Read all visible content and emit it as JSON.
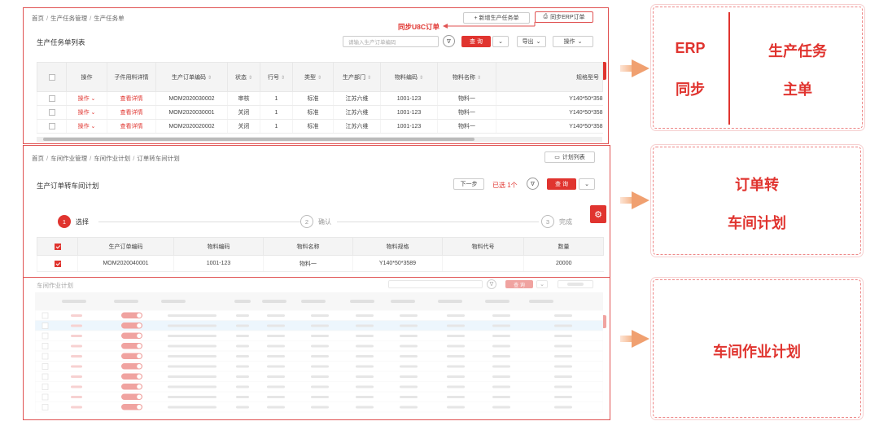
{
  "panel1": {
    "breadcrumb": [
      "首页",
      "生产任务管理",
      "生产任务单"
    ],
    "title": "生产任务单列表",
    "new_button": "+ 新增生产任务单",
    "sync_button": "同步ERP订单",
    "annotation": "同步U8C订单",
    "search_placeholder": "请输入生产订单编码",
    "query_button": "查 询",
    "export_button": "导出",
    "action_button": "操作",
    "columns": [
      "操作",
      "子件用料详情",
      "生产订单编码",
      "状态",
      "行号",
      "类型",
      "生产部门",
      "物料编码",
      "物料名称",
      "规格型号"
    ],
    "rows": [
      {
        "op": "操作",
        "detail": "查看详情",
        "code": "MOM2020030002",
        "status": "审核",
        "line": "1",
        "type": "标准",
        "dept": "江苏六维",
        "mat": "1001-123",
        "name": "物料一",
        "spec": "Y140*50*358"
      },
      {
        "op": "操作",
        "detail": "查看详情",
        "code": "MOM2020030001",
        "status": "关闭",
        "line": "1",
        "type": "标准",
        "dept": "江苏六维",
        "mat": "1001-123",
        "name": "物料一",
        "spec": "Y140*50*358"
      },
      {
        "op": "操作",
        "detail": "查看详情",
        "code": "MOM2020020002",
        "status": "关闭",
        "line": "1",
        "type": "标准",
        "dept": "江苏六维",
        "mat": "1001-123",
        "name": "物料一",
        "spec": "Y140*50*358"
      }
    ]
  },
  "panel2": {
    "breadcrumb": [
      "首页",
      "车间作业管理",
      "车间作业计划",
      "订单转车间计划"
    ],
    "plan_list_button": "计划列表",
    "title": "生产订单转车间计划",
    "next_button": "下一步",
    "selected_text": "已选 1个",
    "query_button": "查 询",
    "steps": [
      {
        "num": "1",
        "label": "选择"
      },
      {
        "num": "2",
        "label": "确认"
      },
      {
        "num": "3",
        "label": "完成"
      }
    ],
    "columns": [
      "生产订单编码",
      "物料编码",
      "物料名称",
      "物料规格",
      "物料代号",
      "数量"
    ],
    "rows": [
      {
        "code": "MOM2020040001",
        "mat": "1001-123",
        "name": "物料一",
        "spec": "Y140*50*3589",
        "alias": "",
        "qty": "20000"
      }
    ]
  },
  "panel3": {
    "title": "车间作业计划",
    "query_button": "查 询"
  },
  "callouts": {
    "c1_left_top": "ERP",
    "c1_left_bottom": "同步",
    "c1_right_top": "生产任务",
    "c1_right_bottom": "主单",
    "c2_top": "订单转",
    "c2_bottom": "车间计划",
    "c3": "车间作业计划"
  },
  "colors": {
    "accent": "#e0342f",
    "arrow": "#f0a070"
  }
}
